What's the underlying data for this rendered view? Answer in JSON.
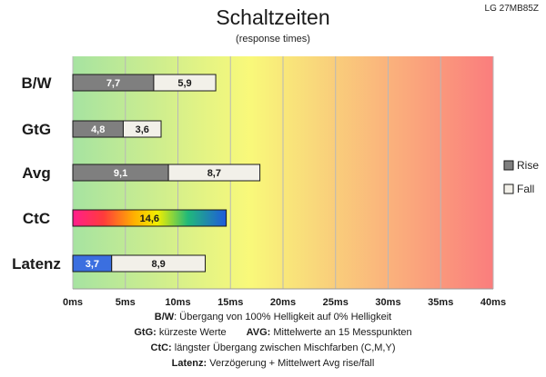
{
  "header": {
    "title": "Schaltzeiten",
    "subtitle": "(response times)",
    "model": "LG 27MB85Z"
  },
  "chart_data": {
    "type": "bar",
    "orientation": "horizontal",
    "stacked": true,
    "title": "Schaltzeiten",
    "subtitle": "(response times)",
    "categories": [
      "B/W",
      "GtG",
      "Avg",
      "CtC",
      "Latenz"
    ],
    "series": [
      {
        "name": "Rise",
        "color": "#7f7f7f",
        "values": [
          7.7,
          4.8,
          9.1,
          14.6,
          3.7
        ]
      },
      {
        "name": "Fall",
        "color": "#f2f0e9",
        "values": [
          5.9,
          3.6,
          8.7,
          0,
          8.9
        ]
      }
    ],
    "value_labels": [
      [
        "7,7",
        "5,9"
      ],
      [
        "4,8",
        "3,6"
      ],
      [
        "9,1",
        "8,7"
      ],
      [
        "14,6",
        ""
      ],
      [
        "3,7",
        "8,9"
      ]
    ],
    "special_fills": {
      "CtC": "rainbow",
      "Latenz": "#3b6fe0"
    },
    "x_ticks": [
      "0ms",
      "5ms",
      "10ms",
      "15ms",
      "20ms",
      "25ms",
      "30ms",
      "35ms",
      "40ms"
    ],
    "xlim": [
      0,
      40
    ],
    "background_gradient": [
      "#a6e3a1",
      "#f9f97a",
      "#fa7d7d"
    ],
    "grid": true,
    "legend_position": "right"
  },
  "legend": [
    {
      "label": "Rise",
      "color": "#7f7f7f"
    },
    {
      "label": "Fall",
      "color": "#f2f0e9"
    }
  ],
  "notes": {
    "line1_key": "B/W",
    "line1_text": ":  Übergang von 100% Helligkeit auf 0% Helligkeit",
    "line2_key1": "GtG:",
    "line2_text1": " kürzeste  Werte",
    "line2_key2": "AVG:",
    "line2_text2": " Mittelwerte  an 15 Messpunkten",
    "line3_key": "CtC:",
    "line3_text": " längster Übergang  zwischen Mischfarben  (C,M,Y)",
    "line4_key": "Latenz:",
    "line4_text": " Verzögerung  + Mittelwert  Avg rise/fall"
  }
}
